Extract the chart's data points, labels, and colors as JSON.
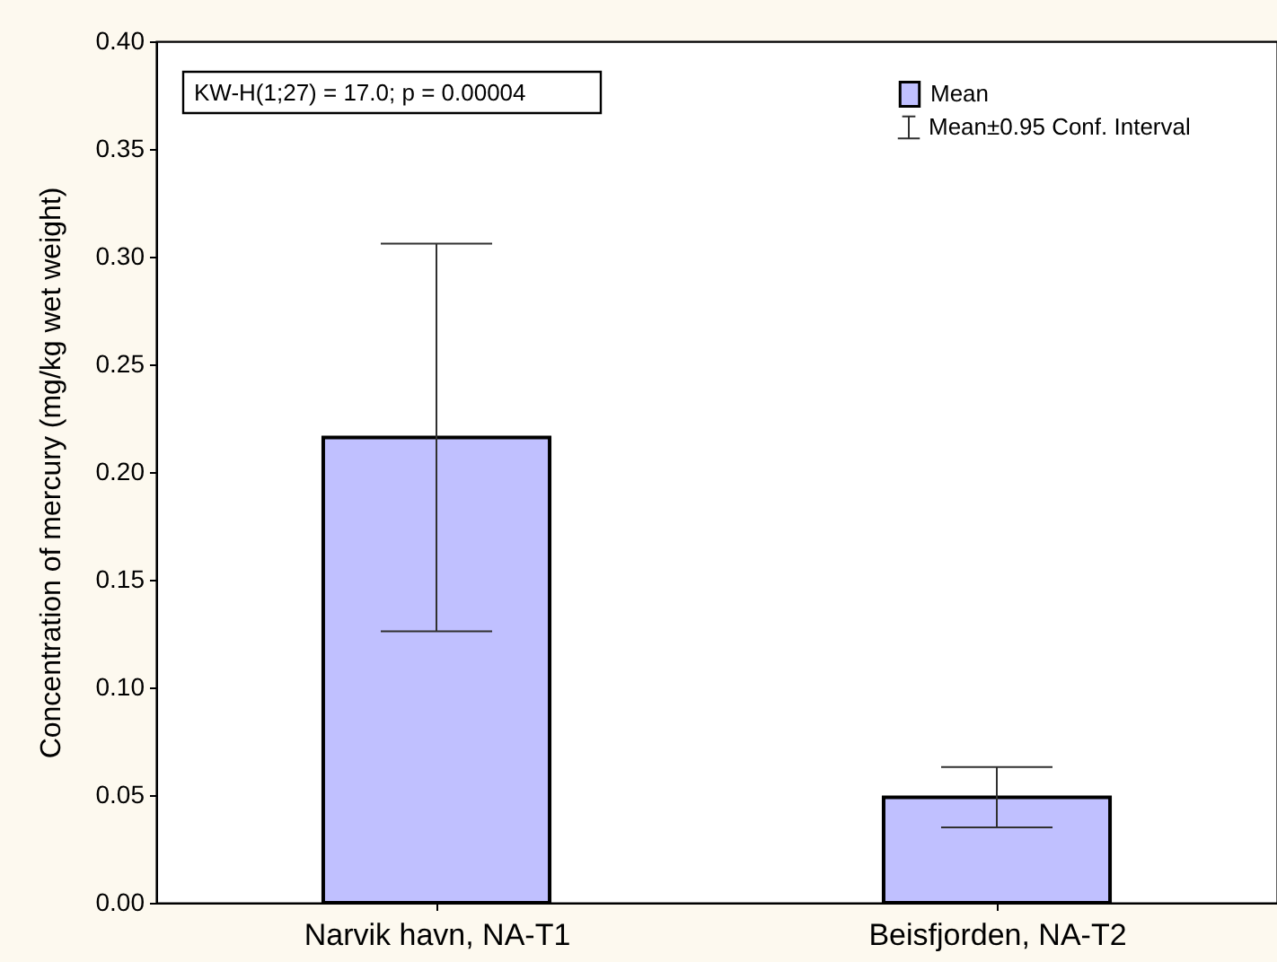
{
  "chart_data": {
    "type": "bar",
    "ylabel": "Concentration of mercury (mg/kg wet weight)",
    "categories": [
      "Narvik havn, NA-T1",
      "Beisfjorden, NA-T2"
    ],
    "series": [
      {
        "name": "Mean",
        "color": "#c0c0ff",
        "values": [
          0.216,
          0.049
        ],
        "errors": [
          0.09,
          0.014
        ]
      }
    ],
    "ylim": [
      0,
      0.4
    ],
    "yticks": [
      {
        "value": 0,
        "label": "0.00"
      },
      0.05,
      {
        "value": 0.1,
        "label": "0.10"
      },
      0.15,
      {
        "value": 0.2,
        "label": "0.20"
      },
      0.25,
      {
        "value": 0.3,
        "label": "0.30"
      },
      0.35,
      {
        "value": 0.4,
        "label": "0.40"
      }
    ],
    "legend": "top right",
    "annotations": [
      "KW-H(1;27) = 17.0; p = 0.00004",
      "Mean±0.95 Conf. Interval"
    ]
  }
}
